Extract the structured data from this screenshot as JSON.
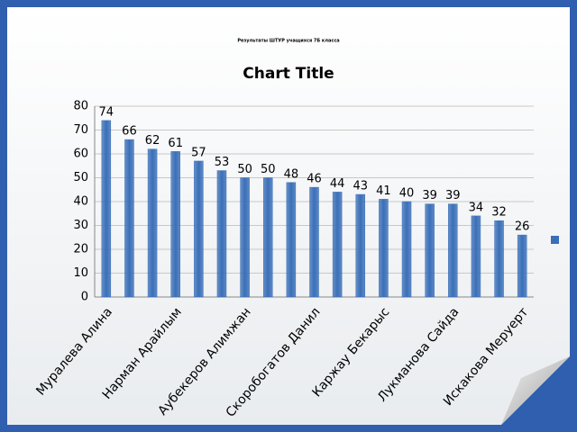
{
  "header": {
    "title": "Результаты ШТУР учащихся 7Б класса"
  },
  "chart_data": {
    "type": "bar",
    "title": "Chart Title",
    "categories": [
      "Муралева Алина",
      null,
      null,
      "Нарман Арайлым",
      null,
      null,
      "Аубекеров Алимжан",
      null,
      null,
      "Скоробогатов Данил",
      null,
      null,
      "Каржау Бекарыс",
      null,
      null,
      "Лукманова Сайда",
      null,
      null,
      "Искакова Меруерт"
    ],
    "values": [
      74,
      66,
      62,
      61,
      57,
      53,
      50,
      50,
      48,
      46,
      44,
      43,
      41,
      40,
      39,
      39,
      34,
      32,
      26
    ],
    "color": "#3a6fb8",
    "ylim": [
      0,
      80
    ],
    "yticks": [
      0,
      10,
      20,
      30,
      40,
      50,
      60,
      70,
      80
    ],
    "grid": true
  }
}
